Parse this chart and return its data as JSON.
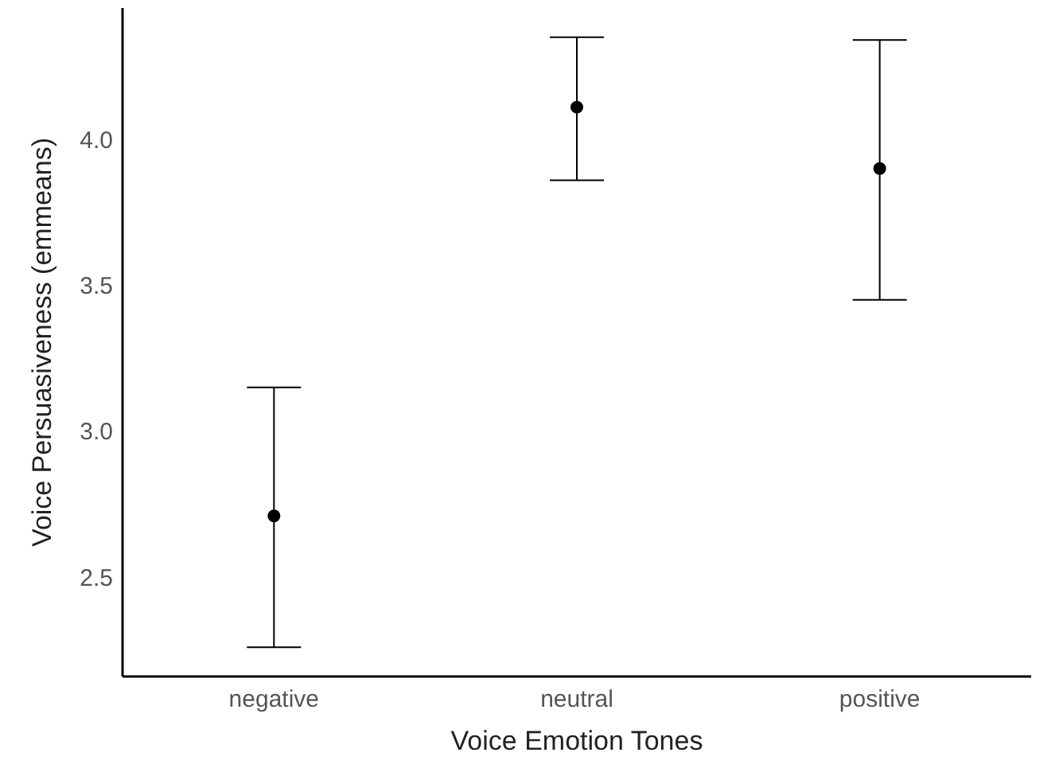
{
  "chart_data": {
    "type": "scatter",
    "xlabel": "Voice Emotion Tones",
    "ylabel": "Voice Persuasiveness (emmeans)",
    "categories": [
      "negative",
      "neutral",
      "positive"
    ],
    "values": [
      2.71,
      4.11,
      3.9
    ],
    "errors": [
      [
        2.26,
        3.15
      ],
      [
        3.86,
        4.35
      ],
      [
        3.45,
        4.34
      ]
    ],
    "color": "#000000",
    "marker": "circle",
    "grid": false,
    "ylim": [
      2.16,
      4.45
    ],
    "yticks": [
      {
        "value": 2.5,
        "label": "2.5"
      },
      {
        "value": 3,
        "label": "3.0"
      },
      {
        "value": 3.5,
        "label": "3.5"
      },
      {
        "value": 4,
        "label": "4.0"
      }
    ]
  }
}
